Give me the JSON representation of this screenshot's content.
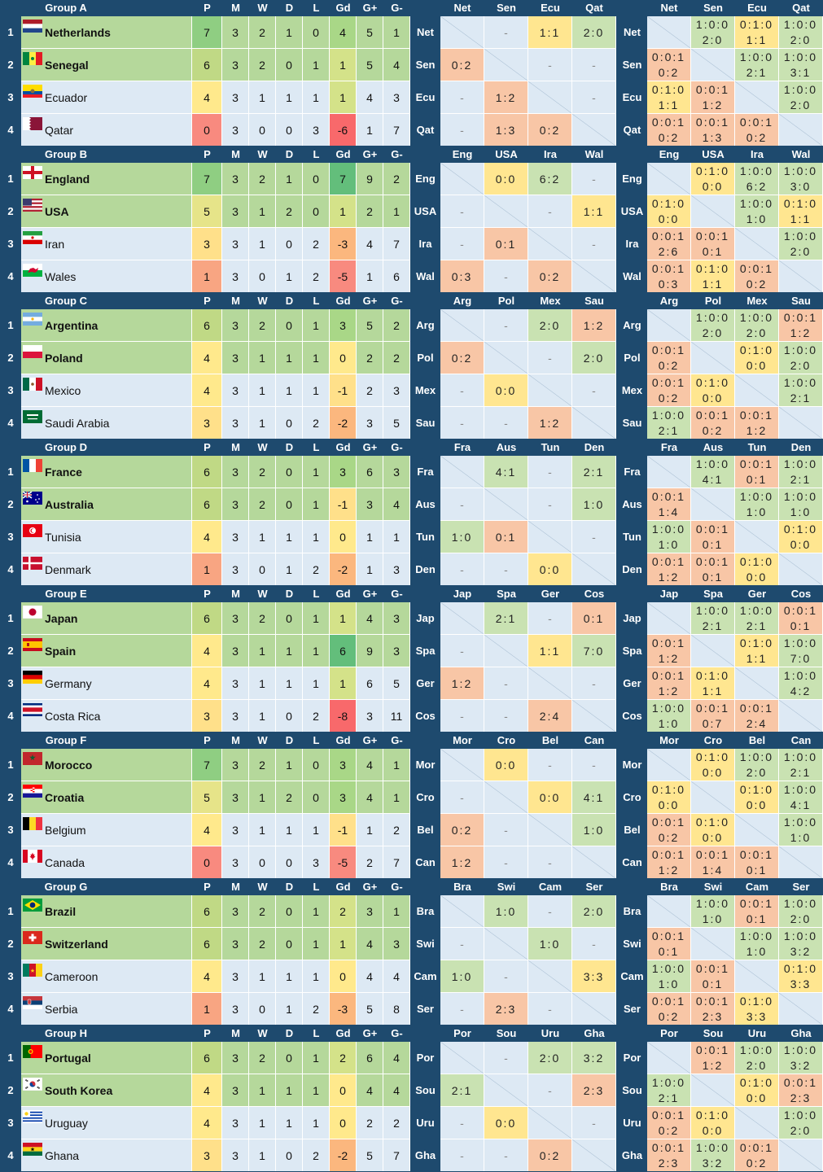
{
  "colors": {
    "frame": "#1e4a6e",
    "qualified": "#b5d89b",
    "eliminated": "#dde9f4",
    "win": "#c9e2b2",
    "draw": "#ffe690",
    "loss": "#f8c6a6",
    "empty": "#dde9f4",
    "p_scale": [
      "#f88a7f",
      "#f8a582",
      "#fbc884",
      "#ffe08a",
      "#ffe98c",
      "#e6e489",
      "#c0d985",
      "#8fce82"
    ],
    "gd_scale": [
      "#f8696b",
      "#f88a7f",
      "#fbb77e",
      "#ffe08a",
      "#ffe98c",
      "#d4e289",
      "#a9d787",
      "#63be7b"
    ]
  },
  "columns": [
    "P",
    "M",
    "W",
    "D",
    "L",
    "Gd",
    "G+",
    "G-"
  ],
  "groups": [
    {
      "name": "Group A",
      "abbr": [
        "Net",
        "Sen",
        "Ecu",
        "Qat"
      ],
      "teams": [
        {
          "rank": "1",
          "name": "Netherlands",
          "flag": "nl",
          "stats": [
            "7",
            "3",
            "2",
            "1",
            "0",
            "4",
            "5",
            "1"
          ]
        },
        {
          "rank": "2",
          "name": "Senegal",
          "flag": "sn",
          "stats": [
            "6",
            "3",
            "2",
            "0",
            "1",
            "1",
            "5",
            "4"
          ]
        },
        {
          "rank": "3",
          "name": "Ecuador",
          "flag": "ec",
          "stats": [
            "4",
            "3",
            "1",
            "1",
            "1",
            "1",
            "4",
            "3"
          ]
        },
        {
          "rank": "4",
          "name": "Qatar",
          "flag": "qa",
          "stats": [
            "0",
            "3",
            "0",
            "0",
            "3",
            "-6",
            "1",
            "7"
          ]
        }
      ],
      "matrix": [
        [
          "",
          "-",
          "1:1",
          "2:0"
        ],
        [
          "0:2",
          "",
          "-",
          "-"
        ],
        [
          "-",
          "1:2",
          "",
          "-"
        ],
        [
          "-",
          "1:3",
          "0:2",
          ""
        ]
      ],
      "odds": [
        [
          "",
          "1:0:0|2:0",
          "0:1:0|1:1",
          "1:0:0|2:0"
        ],
        [
          "0:0:1|0:2",
          "",
          "1:0:0|2:1",
          "1:0:0|3:1"
        ],
        [
          "0:1:0|1:1",
          "0:0:1|1:2",
          "",
          "1:0:0|2:0"
        ],
        [
          "0:0:1|0:2",
          "0:0:1|1:3",
          "0:0:1|0:2",
          ""
        ]
      ]
    },
    {
      "name": "Group B",
      "abbr": [
        "Eng",
        "USA",
        "Ira",
        "Wal"
      ],
      "teams": [
        {
          "rank": "1",
          "name": "England",
          "flag": "en",
          "stats": [
            "7",
            "3",
            "2",
            "1",
            "0",
            "7",
            "9",
            "2"
          ]
        },
        {
          "rank": "2",
          "name": "USA",
          "flag": "us",
          "stats": [
            "5",
            "3",
            "1",
            "2",
            "0",
            "1",
            "2",
            "1"
          ]
        },
        {
          "rank": "3",
          "name": "Iran",
          "flag": "ir",
          "stats": [
            "3",
            "3",
            "1",
            "0",
            "2",
            "-3",
            "4",
            "7"
          ]
        },
        {
          "rank": "4",
          "name": "Wales",
          "flag": "wa",
          "stats": [
            "1",
            "3",
            "0",
            "1",
            "2",
            "-5",
            "1",
            "6"
          ]
        }
      ],
      "matrix": [
        [
          "",
          "0:0",
          "6:2",
          "-"
        ],
        [
          "-",
          "",
          "-",
          "1:1"
        ],
        [
          "-",
          "0:1",
          "",
          "-"
        ],
        [
          "0:3",
          "-",
          "0:2",
          ""
        ]
      ],
      "odds": [
        [
          "",
          "0:1:0|0:0",
          "1:0:0|6:2",
          "1:0:0|3:0"
        ],
        [
          "0:1:0|0:0",
          "",
          "1:0:0|1:0",
          "0:1:0|1:1"
        ],
        [
          "0:0:1|2:6",
          "0:0:1|0:1",
          "",
          "1:0:0|2:0"
        ],
        [
          "0:0:1|0:3",
          "0:1:0|1:1",
          "0:0:1|0:2",
          ""
        ]
      ]
    },
    {
      "name": "Group C",
      "abbr": [
        "Arg",
        "Pol",
        "Mex",
        "Sau"
      ],
      "teams": [
        {
          "rank": "1",
          "name": "Argentina",
          "flag": "ar",
          "stats": [
            "6",
            "3",
            "2",
            "0",
            "1",
            "3",
            "5",
            "2"
          ]
        },
        {
          "rank": "2",
          "name": "Poland",
          "flag": "pl",
          "stats": [
            "4",
            "3",
            "1",
            "1",
            "1",
            "0",
            "2",
            "2"
          ]
        },
        {
          "rank": "3",
          "name": "Mexico",
          "flag": "mx",
          "stats": [
            "4",
            "3",
            "1",
            "1",
            "1",
            "-1",
            "2",
            "3"
          ]
        },
        {
          "rank": "4",
          "name": "Saudi Arabia",
          "flag": "sa",
          "stats": [
            "3",
            "3",
            "1",
            "0",
            "2",
            "-2",
            "3",
            "5"
          ]
        }
      ],
      "matrix": [
        [
          "",
          "-",
          "2:0",
          "1:2"
        ],
        [
          "0:2",
          "",
          "-",
          "2:0"
        ],
        [
          "-",
          "0:0",
          "",
          "-"
        ],
        [
          "-",
          "-",
          "1:2",
          ""
        ]
      ],
      "odds": [
        [
          "",
          "1:0:0|2:0",
          "1:0:0|2:0",
          "0:0:1|1:2"
        ],
        [
          "0:0:1|0:2",
          "",
          "0:1:0|0:0",
          "1:0:0|2:0"
        ],
        [
          "0:0:1|0:2",
          "0:1:0|0:0",
          "",
          "1:0:0|2:1"
        ],
        [
          "1:0:0|2:1",
          "0:0:1|0:2",
          "0:0:1|1:2",
          ""
        ]
      ]
    },
    {
      "name": "Group D",
      "abbr": [
        "Fra",
        "Aus",
        "Tun",
        "Den"
      ],
      "teams": [
        {
          "rank": "1",
          "name": "France",
          "flag": "fr",
          "stats": [
            "6",
            "3",
            "2",
            "0",
            "1",
            "3",
            "6",
            "3"
          ]
        },
        {
          "rank": "2",
          "name": "Australia",
          "flag": "au",
          "stats": [
            "6",
            "3",
            "2",
            "0",
            "1",
            "-1",
            "3",
            "4"
          ]
        },
        {
          "rank": "3",
          "name": "Tunisia",
          "flag": "tn",
          "stats": [
            "4",
            "3",
            "1",
            "1",
            "1",
            "0",
            "1",
            "1"
          ]
        },
        {
          "rank": "4",
          "name": "Denmark",
          "flag": "dk",
          "stats": [
            "1",
            "3",
            "0",
            "1",
            "2",
            "-2",
            "1",
            "3"
          ]
        }
      ],
      "matrix": [
        [
          "",
          "4:1",
          "-",
          "2:1"
        ],
        [
          "-",
          "",
          "-",
          "1:0"
        ],
        [
          "1:0",
          "0:1",
          "",
          "-"
        ],
        [
          "-",
          "-",
          "0:0",
          ""
        ]
      ],
      "odds": [
        [
          "",
          "1:0:0|4:1",
          "0:0:1|0:1",
          "1:0:0|2:1"
        ],
        [
          "0:0:1|1:4",
          "",
          "1:0:0|1:0",
          "1:0:0|1:0"
        ],
        [
          "1:0:0|1:0",
          "0:0:1|0:1",
          "",
          "0:1:0|0:0"
        ],
        [
          "0:0:1|1:2",
          "0:0:1|0:1",
          "0:1:0|0:0",
          ""
        ]
      ]
    },
    {
      "name": "Group E",
      "abbr": [
        "Jap",
        "Spa",
        "Ger",
        "Cos"
      ],
      "teams": [
        {
          "rank": "1",
          "name": "Japan",
          "flag": "jp",
          "stats": [
            "6",
            "3",
            "2",
            "0",
            "1",
            "1",
            "4",
            "3"
          ]
        },
        {
          "rank": "2",
          "name": "Spain",
          "flag": "es",
          "stats": [
            "4",
            "3",
            "1",
            "1",
            "1",
            "6",
            "9",
            "3"
          ]
        },
        {
          "rank": "3",
          "name": "Germany",
          "flag": "de",
          "stats": [
            "4",
            "3",
            "1",
            "1",
            "1",
            "1",
            "6",
            "5"
          ]
        },
        {
          "rank": "4",
          "name": "Costa Rica",
          "flag": "cr",
          "stats": [
            "3",
            "3",
            "1",
            "0",
            "2",
            "-8",
            "3",
            "11"
          ]
        }
      ],
      "matrix": [
        [
          "",
          "2:1",
          "-",
          "0:1"
        ],
        [
          "-",
          "",
          "1:1",
          "7:0"
        ],
        [
          "1:2",
          "-",
          "",
          "-"
        ],
        [
          "-",
          "-",
          "2:4",
          ""
        ]
      ],
      "odds": [
        [
          "",
          "1:0:0|2:1",
          "1:0:0|2:1",
          "0:0:1|0:1"
        ],
        [
          "0:0:1|1:2",
          "",
          "0:1:0|1:1",
          "1:0:0|7:0"
        ],
        [
          "0:0:1|1:2",
          "0:1:0|1:1",
          "",
          "1:0:0|4:2"
        ],
        [
          "1:0:0|1:0",
          "0:0:1|0:7",
          "0:0:1|2:4",
          ""
        ]
      ]
    },
    {
      "name": "Group F",
      "abbr": [
        "Mor",
        "Cro",
        "Bel",
        "Can"
      ],
      "teams": [
        {
          "rank": "1",
          "name": "Morocco",
          "flag": "ma",
          "stats": [
            "7",
            "3",
            "2",
            "1",
            "0",
            "3",
            "4",
            "1"
          ]
        },
        {
          "rank": "2",
          "name": "Croatia",
          "flag": "hr",
          "stats": [
            "5",
            "3",
            "1",
            "2",
            "0",
            "3",
            "4",
            "1"
          ]
        },
        {
          "rank": "3",
          "name": "Belgium",
          "flag": "be",
          "stats": [
            "4",
            "3",
            "1",
            "1",
            "1",
            "-1",
            "1",
            "2"
          ]
        },
        {
          "rank": "4",
          "name": "Canada",
          "flag": "ca",
          "stats": [
            "0",
            "3",
            "0",
            "0",
            "3",
            "-5",
            "2",
            "7"
          ]
        }
      ],
      "matrix": [
        [
          "",
          "0:0",
          "-",
          "-"
        ],
        [
          "-",
          "",
          "0:0",
          "4:1"
        ],
        [
          "0:2",
          "-",
          "",
          "1:0"
        ],
        [
          "1:2",
          "-",
          "-",
          ""
        ]
      ],
      "odds": [
        [
          "",
          "0:1:0|0:0",
          "1:0:0|2:0",
          "1:0:0|2:1"
        ],
        [
          "0:1:0|0:0",
          "",
          "0:1:0|0:0",
          "1:0:0|4:1"
        ],
        [
          "0:0:1|0:2",
          "0:1:0|0:0",
          "",
          "1:0:0|1:0"
        ],
        [
          "0:0:1|1:2",
          "0:0:1|1:4",
          "0:0:1|0:1",
          ""
        ]
      ]
    },
    {
      "name": "Group G",
      "abbr": [
        "Bra",
        "Swi",
        "Cam",
        "Ser"
      ],
      "teams": [
        {
          "rank": "1",
          "name": "Brazil",
          "flag": "br",
          "stats": [
            "6",
            "3",
            "2",
            "0",
            "1",
            "2",
            "3",
            "1"
          ]
        },
        {
          "rank": "2",
          "name": "Switzerland",
          "flag": "ch",
          "stats": [
            "6",
            "3",
            "2",
            "0",
            "1",
            "1",
            "4",
            "3"
          ]
        },
        {
          "rank": "3",
          "name": "Cameroon",
          "flag": "cm",
          "stats": [
            "4",
            "3",
            "1",
            "1",
            "1",
            "0",
            "4",
            "4"
          ]
        },
        {
          "rank": "4",
          "name": "Serbia",
          "flag": "rs",
          "stats": [
            "1",
            "3",
            "0",
            "1",
            "2",
            "-3",
            "5",
            "8"
          ]
        }
      ],
      "matrix": [
        [
          "",
          "1:0",
          "-",
          "2:0"
        ],
        [
          "-",
          "",
          "1:0",
          "-"
        ],
        [
          "1:0",
          "-",
          "",
          "3:3"
        ],
        [
          "-",
          "2:3",
          "-",
          ""
        ]
      ],
      "odds": [
        [
          "",
          "1:0:0|1:0",
          "0:0:1|0:1",
          "1:0:0|2:0"
        ],
        [
          "0:0:1|0:1",
          "",
          "1:0:0|1:0",
          "1:0:0|3:2"
        ],
        [
          "1:0:0|1:0",
          "0:0:1|0:1",
          "",
          "0:1:0|3:3"
        ],
        [
          "0:0:1|0:2",
          "0:0:1|2:3",
          "0:1:0|3:3",
          ""
        ]
      ]
    },
    {
      "name": "Group H",
      "abbr": [
        "Por",
        "Sou",
        "Uru",
        "Gha"
      ],
      "teams": [
        {
          "rank": "1",
          "name": "Portugal",
          "flag": "pt",
          "stats": [
            "6",
            "3",
            "2",
            "0",
            "1",
            "2",
            "6",
            "4"
          ]
        },
        {
          "rank": "2",
          "name": "South Korea",
          "flag": "kr",
          "stats": [
            "4",
            "3",
            "1",
            "1",
            "1",
            "0",
            "4",
            "4"
          ]
        },
        {
          "rank": "3",
          "name": "Uruguay",
          "flag": "uy",
          "stats": [
            "4",
            "3",
            "1",
            "1",
            "1",
            "0",
            "2",
            "2"
          ]
        },
        {
          "rank": "4",
          "name": "Ghana",
          "flag": "gh",
          "stats": [
            "3",
            "3",
            "1",
            "0",
            "2",
            "-2",
            "5",
            "7"
          ]
        }
      ],
      "matrix": [
        [
          "",
          "-",
          "2:0",
          "3:2"
        ],
        [
          "2:1",
          "",
          "-",
          "2:3"
        ],
        [
          "-",
          "0:0",
          "",
          "-"
        ],
        [
          "-",
          "-",
          "0:2",
          ""
        ]
      ],
      "odds": [
        [
          "",
          "0:0:1|1:2",
          "1:0:0|2:0",
          "1:0:0|3:2"
        ],
        [
          "1:0:0|2:1",
          "",
          "0:1:0|0:0",
          "0:0:1|2:3"
        ],
        [
          "0:0:1|0:2",
          "0:1:0|0:0",
          "",
          "1:0:0|2:0"
        ],
        [
          "0:0:1|2:3",
          "1:0:0|3:2",
          "0:0:1|0:2",
          ""
        ]
      ]
    }
  ]
}
